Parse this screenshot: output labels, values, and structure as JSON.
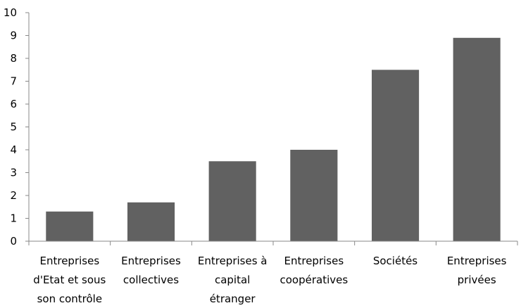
{
  "chart_data": {
    "type": "bar",
    "categories": [
      [
        "Entreprises",
        "d'Etat et sous",
        "son contrôle"
      ],
      [
        "Entreprises",
        "collectives"
      ],
      [
        "Entreprises à",
        "capital",
        "étranger"
      ],
      [
        "Entreprises",
        "coopératives"
      ],
      [
        "Sociétés"
      ],
      [
        "Entreprises",
        "privées"
      ]
    ],
    "values": [
      1.3,
      1.7,
      3.5,
      4.0,
      7.5,
      8.9
    ],
    "yticks": [
      "0",
      "1",
      "2",
      "3",
      "4",
      "5",
      "6",
      "7",
      "8",
      "9",
      "10"
    ],
    "ylim": [
      0,
      10
    ],
    "title": "",
    "xlabel": "",
    "ylabel": "",
    "grid": false,
    "legend": "none",
    "bar_color": "#616161",
    "axis_color": "#888888"
  }
}
